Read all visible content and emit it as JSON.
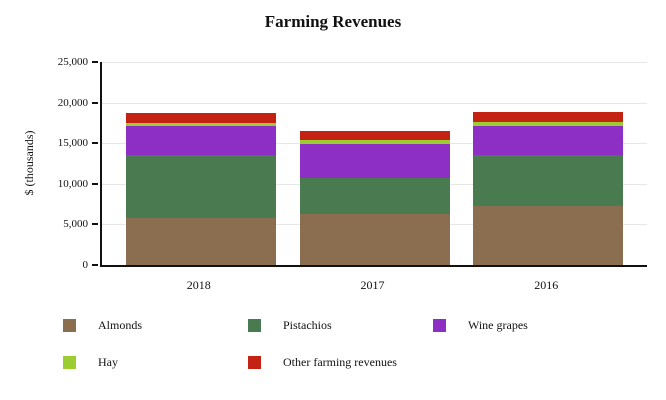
{
  "chart_data": {
    "type": "bar",
    "stacked": true,
    "title": "Farming Revenues",
    "xlabel": "",
    "ylabel": "$ (thousands)",
    "ylim": [
      0,
      25000
    ],
    "grid": true,
    "legend_position": "bottom",
    "categories": [
      "2018",
      "2017",
      "2016"
    ],
    "yticks": [
      "25,000",
      "20,000",
      "15,000",
      "10,000",
      "5,000",
      "0"
    ],
    "series": [
      {
        "name": "Almonds",
        "color": "#8b6d4f",
        "values": [
          5800,
          6300,
          7300
        ]
      },
      {
        "name": "Pistachios",
        "color": "#4a7b50",
        "values": [
          7700,
          4400,
          6200
        ]
      },
      {
        "name": "Wine grapes",
        "color": "#8d2fc4",
        "values": [
          3600,
          4200,
          3600
        ]
      },
      {
        "name": "Hay",
        "color": "#9bcd33",
        "values": [
          400,
          500,
          500
        ]
      },
      {
        "name": "Other farming revenues",
        "color": "#c42313",
        "values": [
          1200,
          1100,
          1200
        ]
      }
    ]
  }
}
